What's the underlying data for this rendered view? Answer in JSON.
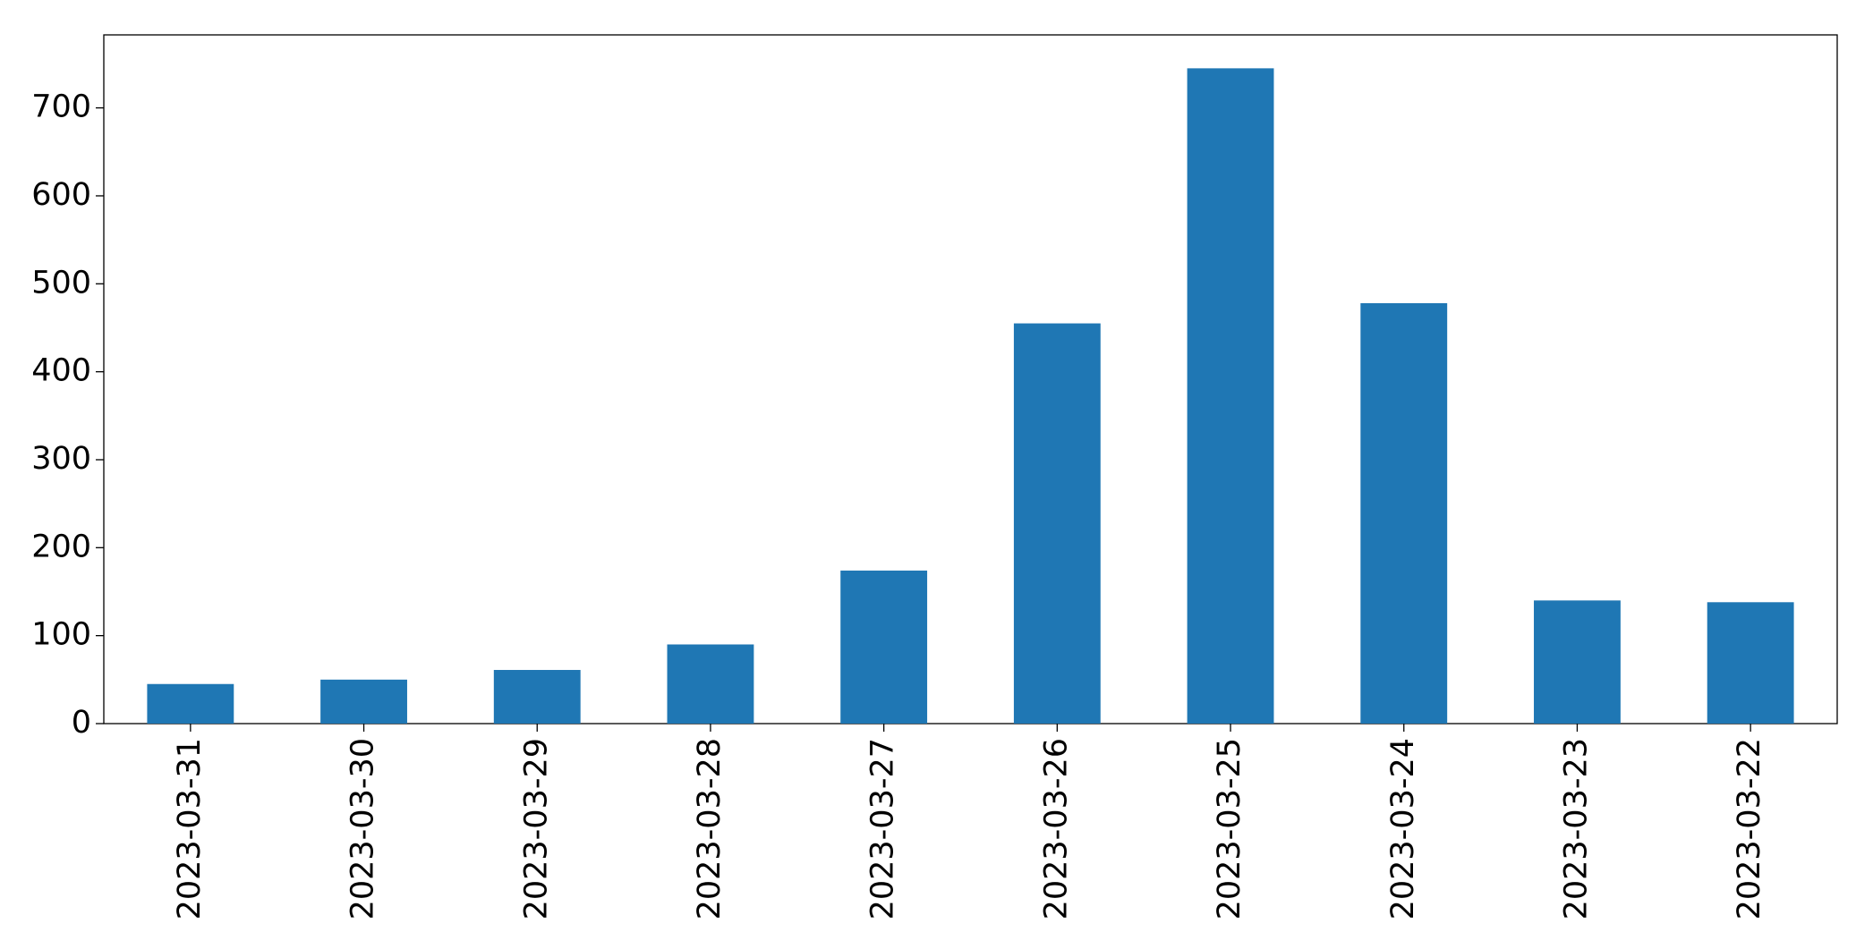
{
  "chart_data": {
    "type": "bar",
    "categories": [
      "2023-03-31",
      "2023-03-30",
      "2023-03-29",
      "2023-03-28",
      "2023-03-27",
      "2023-03-26",
      "2023-03-25",
      "2023-03-24",
      "2023-03-23",
      "2023-03-22"
    ],
    "values": [
      45,
      50,
      61,
      90,
      174,
      455,
      745,
      478,
      140,
      138
    ],
    "color": "#1f77b4",
    "ylim": [
      0,
      783
    ],
    "yticks": [
      0,
      100,
      200,
      300,
      400,
      500,
      600,
      700
    ],
    "grid": false
  }
}
